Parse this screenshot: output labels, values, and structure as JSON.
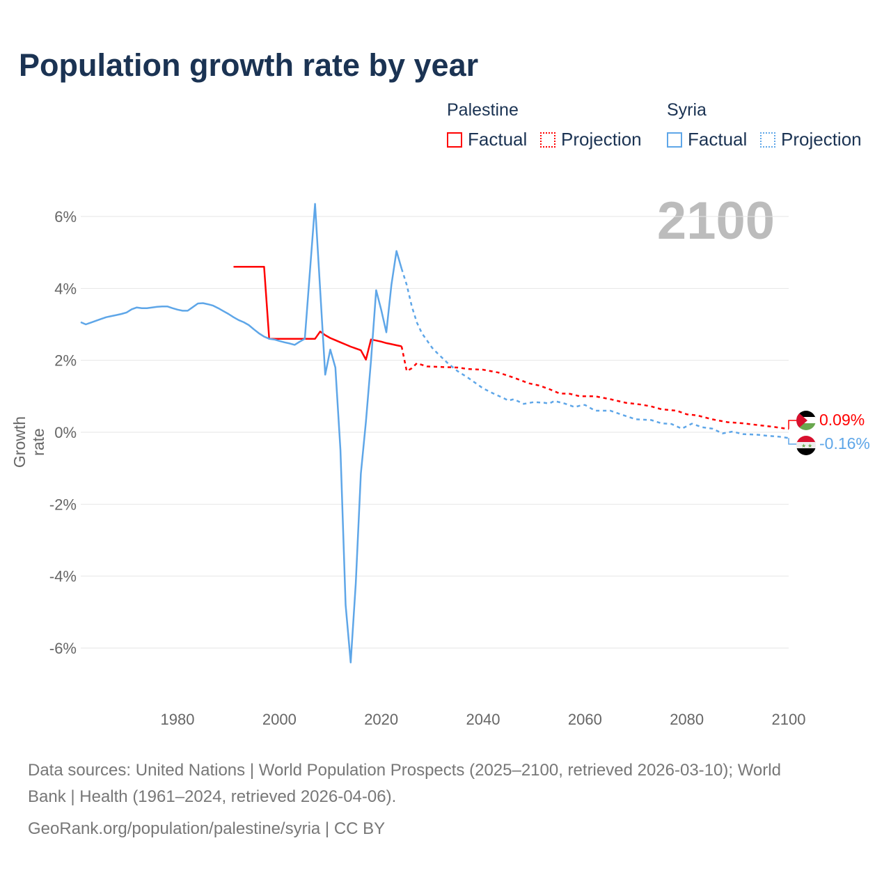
{
  "title": "Population growth rate by year",
  "legend": {
    "groups": [
      {
        "name": "Palestine",
        "items": [
          "Factual",
          "Projection"
        ],
        "color": "#ff0000"
      },
      {
        "name": "Syria",
        "items": [
          "Factual",
          "Projection"
        ],
        "color": "#5ea6e8"
      }
    ]
  },
  "current_year_label": "2100",
  "end_labels": {
    "palestine": "0.09%",
    "syria": "-0.16%"
  },
  "footer": {
    "line1": "Data sources: United Nations | World Population Prospects (2025–2100, retrieved 2026-03-10); World",
    "line2": "Bank | Health (1961–2024, retrieved 2026-04-06).",
    "line3": "GeoRank.org/population/palestine/syria | CC BY"
  },
  "chart_data": {
    "type": "line",
    "title": "Population growth rate by year",
    "xlabel": "",
    "ylabel": "Growth rate",
    "xlim": [
      1961,
      2100
    ],
    "ylim": [
      -7.3,
      6.6
    ],
    "x_ticks": [
      1980,
      2000,
      2020,
      2040,
      2060,
      2080,
      2100
    ],
    "y_ticks": [
      -6,
      -4,
      -2,
      0,
      2,
      4,
      6
    ],
    "y_tick_labels": [
      "-6%",
      "-4%",
      "-2%",
      "0%",
      "2%",
      "4%",
      "6%"
    ],
    "grid": true,
    "legend_position": "top-right",
    "series": [
      {
        "name": "Palestine Factual",
        "color": "#ff0000",
        "style": "solid",
        "points": [
          [
            1991,
            4.6
          ],
          [
            1997,
            4.6
          ],
          [
            1998,
            2.6
          ],
          [
            2007,
            2.6
          ],
          [
            2008,
            2.8
          ],
          [
            2009,
            2.7
          ],
          [
            2010,
            2.62
          ],
          [
            2011,
            2.56
          ],
          [
            2012,
            2.5
          ],
          [
            2013,
            2.44
          ],
          [
            2014,
            2.38
          ],
          [
            2015,
            2.33
          ],
          [
            2016,
            2.28
          ],
          [
            2017,
            2.02
          ],
          [
            2018,
            2.58
          ],
          [
            2019,
            2.55
          ],
          [
            2020,
            2.52
          ],
          [
            2021,
            2.48
          ],
          [
            2022,
            2.45
          ],
          [
            2023,
            2.42
          ],
          [
            2024,
            2.39
          ]
        ]
      },
      {
        "name": "Palestine Projection",
        "color": "#ff0000",
        "style": "dotted",
        "points": [
          [
            2024,
            2.39
          ],
          [
            2025,
            1.7
          ],
          [
            2026,
            1.78
          ],
          [
            2027,
            1.92
          ],
          [
            2029,
            1.83
          ],
          [
            2033,
            1.81
          ],
          [
            2035,
            1.8
          ],
          [
            2037,
            1.76
          ],
          [
            2040,
            1.74
          ],
          [
            2043,
            1.66
          ],
          [
            2046,
            1.52
          ],
          [
            2049,
            1.36
          ],
          [
            2051,
            1.3
          ],
          [
            2053,
            1.2
          ],
          [
            2055,
            1.08
          ],
          [
            2057,
            1.07
          ],
          [
            2059,
            1.0
          ],
          [
            2062,
            1.0
          ],
          [
            2065,
            0.92
          ],
          [
            2068,
            0.82
          ],
          [
            2071,
            0.77
          ],
          [
            2073,
            0.72
          ],
          [
            2075,
            0.64
          ],
          [
            2078,
            0.6
          ],
          [
            2080,
            0.5
          ],
          [
            2082,
            0.47
          ],
          [
            2085,
            0.36
          ],
          [
            2088,
            0.28
          ],
          [
            2091,
            0.25
          ],
          [
            2094,
            0.2
          ],
          [
            2097,
            0.15
          ],
          [
            2100,
            0.09
          ]
        ]
      },
      {
        "name": "Syria Factual",
        "color": "#5ea6e8",
        "style": "solid",
        "points": [
          [
            1961,
            3.06
          ],
          [
            1962,
            3.0
          ],
          [
            1963,
            3.05
          ],
          [
            1964,
            3.1
          ],
          [
            1965,
            3.15
          ],
          [
            1966,
            3.2
          ],
          [
            1967,
            3.23
          ],
          [
            1968,
            3.26
          ],
          [
            1969,
            3.29
          ],
          [
            1970,
            3.33
          ],
          [
            1971,
            3.42
          ],
          [
            1972,
            3.47
          ],
          [
            1973,
            3.45
          ],
          [
            1974,
            3.45
          ],
          [
            1975,
            3.47
          ],
          [
            1976,
            3.49
          ],
          [
            1977,
            3.5
          ],
          [
            1978,
            3.5
          ],
          [
            1979,
            3.45
          ],
          [
            1980,
            3.41
          ],
          [
            1981,
            3.38
          ],
          [
            1982,
            3.38
          ],
          [
            1983,
            3.48
          ],
          [
            1984,
            3.58
          ],
          [
            1985,
            3.59
          ],
          [
            1986,
            3.56
          ],
          [
            1987,
            3.52
          ],
          [
            1988,
            3.45
          ],
          [
            1989,
            3.37
          ],
          [
            1990,
            3.29
          ],
          [
            1991,
            3.2
          ],
          [
            1992,
            3.12
          ],
          [
            1993,
            3.06
          ],
          [
            1994,
            2.98
          ],
          [
            1995,
            2.86
          ],
          [
            1996,
            2.75
          ],
          [
            1997,
            2.66
          ],
          [
            1998,
            2.6
          ],
          [
            1999,
            2.58
          ],
          [
            2000,
            2.54
          ],
          [
            2001,
            2.5
          ],
          [
            2002,
            2.47
          ],
          [
            2003,
            2.43
          ],
          [
            2004,
            2.52
          ],
          [
            2005,
            2.6
          ],
          [
            2007,
            6.35
          ],
          [
            2009,
            1.6
          ],
          [
            2010,
            2.3
          ],
          [
            2011,
            1.8
          ],
          [
            2012,
            -0.5
          ],
          [
            2013,
            -4.8
          ],
          [
            2014,
            -6.4
          ],
          [
            2015,
            -4.2
          ],
          [
            2016,
            -1.15
          ],
          [
            2017,
            0.3
          ],
          [
            2018,
            2.0
          ],
          [
            2019,
            3.95
          ],
          [
            2020,
            3.4
          ],
          [
            2021,
            2.78
          ],
          [
            2022,
            4.1
          ],
          [
            2023,
            5.04
          ],
          [
            2024,
            4.55
          ]
        ]
      },
      {
        "name": "Syria Projection",
        "color": "#5ea6e8",
        "style": "dotted",
        "points": [
          [
            2024,
            4.55
          ],
          [
            2025,
            4.1
          ],
          [
            2026,
            3.5
          ],
          [
            2027,
            3.05
          ],
          [
            2028,
            2.75
          ],
          [
            2029,
            2.55
          ],
          [
            2030,
            2.35
          ],
          [
            2031,
            2.2
          ],
          [
            2033,
            1.93
          ],
          [
            2035,
            1.7
          ],
          [
            2037,
            1.52
          ],
          [
            2039,
            1.32
          ],
          [
            2040,
            1.22
          ],
          [
            2042,
            1.08
          ],
          [
            2044,
            0.95
          ],
          [
            2045,
            0.88
          ],
          [
            2046,
            0.92
          ],
          [
            2048,
            0.79
          ],
          [
            2050,
            0.84
          ],
          [
            2052,
            0.82
          ],
          [
            2053,
            0.8
          ],
          [
            2054,
            0.87
          ],
          [
            2056,
            0.8
          ],
          [
            2058,
            0.7
          ],
          [
            2059,
            0.74
          ],
          [
            2060,
            0.76
          ],
          [
            2062,
            0.6
          ],
          [
            2065,
            0.6
          ],
          [
            2067,
            0.5
          ],
          [
            2070,
            0.36
          ],
          [
            2073,
            0.34
          ],
          [
            2075,
            0.25
          ],
          [
            2077,
            0.23
          ],
          [
            2079,
            0.1
          ],
          [
            2081,
            0.24
          ],
          [
            2083,
            0.14
          ],
          [
            2085,
            0.1
          ],
          [
            2087,
            -0.03
          ],
          [
            2089,
            0.02
          ],
          [
            2091,
            -0.05
          ],
          [
            2094,
            -0.07
          ],
          [
            2096,
            -0.1
          ],
          [
            2098,
            -0.12
          ],
          [
            2100,
            -0.16
          ]
        ]
      }
    ]
  }
}
